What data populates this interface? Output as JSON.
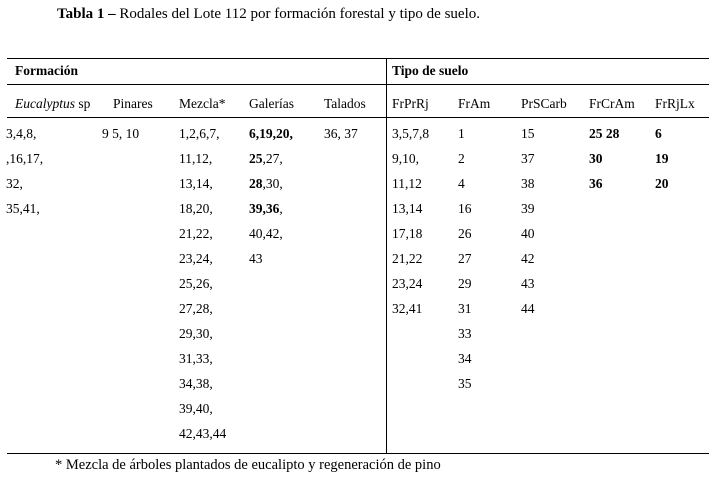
{
  "caption": {
    "label": "Tabla 1 –",
    "text": " Rodales del Lote 112 por formación forestal y tipo de suelo."
  },
  "groups": {
    "formacion": "Formación",
    "tipo_suelo": "Tipo de suelo"
  },
  "columns": {
    "eucalyptus_italic": "Eucalyptus",
    "eucalyptus_rest": " sp",
    "pinares": "Pinares",
    "mezcla": "Mezcla*",
    "galerias": "Galerías",
    "talados": "Talados",
    "frprrj": "FrPrRj",
    "fram": "FrAm",
    "prscarb": "PrSCarb",
    "frcram": "FrCrAm",
    "frrjlx": "FrRjLx"
  },
  "eucalyptus": [
    "3,4,8,",
    ",16,17,",
    "32,",
    "35,41,"
  ],
  "pinares": [
    "9 5, 10"
  ],
  "mezcla": [
    "1,2,6,7,",
    "11,12,",
    "13,14,",
    "18,20,",
    "21,22,",
    "23,24,",
    "25,26,",
    "27,28,",
    "29,30,",
    "31,33,",
    "34,38,",
    "39,40,",
    "42,43,44"
  ],
  "galerias": [
    {
      "b": "6,19,20,",
      "n": ""
    },
    {
      "b": "25",
      "n": ",27,"
    },
    {
      "b": "28",
      "n": ",30,"
    },
    {
      "b": "39,36",
      "n": ","
    },
    {
      "b": "",
      "n": "40,42,"
    },
    {
      "b": "",
      "n": "43"
    }
  ],
  "talados": [
    "36, 37"
  ],
  "frprrj": [
    "3,5,7,8",
    "9,10,",
    "11,12",
    "13,14",
    "17,18",
    "21,22",
    "23,24",
    "32,41"
  ],
  "fram": [
    "1",
    "2",
    "4",
    "16",
    "26",
    "27",
    "29",
    "31",
    "33",
    "34",
    "35"
  ],
  "prscarb": [
    "15",
    "37",
    "38",
    "39",
    "40",
    "42",
    "43",
    "44"
  ],
  "frcram": [
    "25 28",
    "30",
    "36"
  ],
  "frrjlx": [
    "6",
    "19",
    "20"
  ],
  "footnote": "* Mezcla de árboles plantados de eucalipto y regeneración de pino"
}
